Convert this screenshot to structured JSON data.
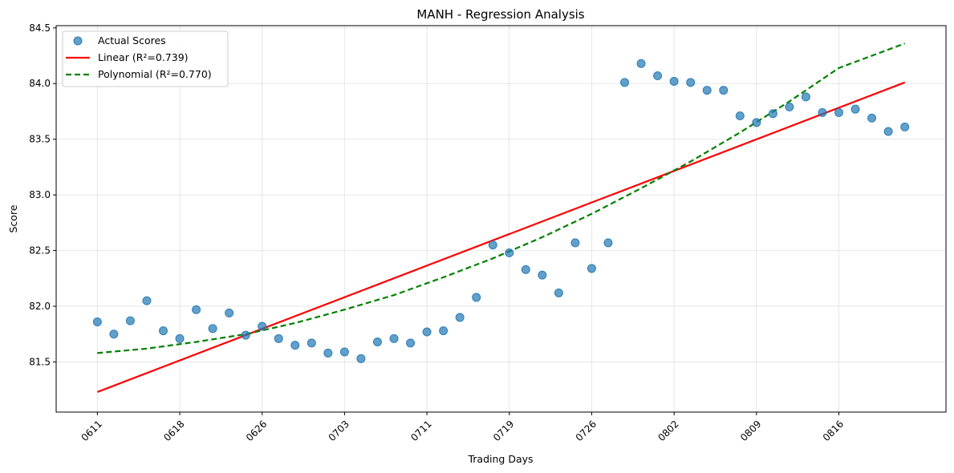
{
  "chart_data": {
    "type": "scatter",
    "title": "MANH - Regression Analysis",
    "xlabel": "Trading Days",
    "ylabel": "Score",
    "ylim": [
      81.05,
      84.52
    ],
    "yticks": [
      81.5,
      82.0,
      82.5,
      83.0,
      83.5,
      84.0,
      84.5
    ],
    "ytick_labels": [
      "81.5",
      "82.0",
      "82.5",
      "83.0",
      "83.5",
      "84.0",
      "84.5"
    ],
    "xticks": [
      0,
      5,
      10,
      15,
      20,
      25,
      30,
      35,
      40,
      45
    ],
    "xtick_labels": [
      "0611",
      "0618",
      "0626",
      "0703",
      "0711",
      "0719",
      "0726",
      "0802",
      "0809",
      "0816"
    ],
    "xlim": [
      -2.5,
      51.5
    ],
    "grid": true,
    "legend_position": "top-left",
    "series": [
      {
        "name": "Actual Scores",
        "kind": "scatter",
        "color": "#1f77b4",
        "x": [
          0,
          1,
          2,
          3,
          4,
          5,
          6,
          7,
          8,
          9,
          10,
          11,
          12,
          13,
          14,
          15,
          16,
          17,
          18,
          19,
          20,
          21,
          22,
          23,
          24,
          25,
          26,
          27,
          28,
          29,
          30,
          31,
          32,
          33,
          34,
          35,
          36,
          37,
          38,
          39,
          40,
          41,
          42,
          43,
          44,
          45,
          46,
          47,
          48,
          49
        ],
        "y": [
          81.86,
          81.75,
          81.87,
          82.05,
          81.78,
          81.71,
          81.97,
          81.8,
          81.94,
          81.74,
          81.82,
          81.71,
          81.65,
          81.67,
          81.58,
          81.59,
          81.53,
          81.68,
          81.71,
          81.67,
          81.77,
          81.78,
          81.9,
          82.08,
          82.55,
          82.48,
          82.33,
          82.28,
          82.12,
          82.57,
          82.34,
          82.57,
          84.01,
          84.18,
          84.07,
          84.02,
          84.01,
          83.94,
          83.94,
          83.71,
          83.65,
          83.73,
          83.79,
          83.88,
          83.74,
          83.74,
          83.77,
          83.69,
          83.57,
          83.61
        ]
      },
      {
        "name": "Linear (R²=0.739)",
        "kind": "line",
        "color": "#ff0000",
        "dash": "solid",
        "x": [
          0,
          49
        ],
        "y": [
          81.23,
          84.01
        ]
      },
      {
        "name": "Polynomial (R²=0.770)",
        "kind": "line",
        "color": "#008000",
        "dash": "dashed",
        "x": [
          0,
          3,
          6,
          9,
          12,
          15,
          18,
          21,
          24,
          27,
          30,
          33,
          36,
          39,
          42,
          45,
          49
        ],
        "y": [
          81.58,
          81.62,
          81.68,
          81.75,
          81.85,
          81.97,
          82.1,
          82.26,
          82.43,
          82.62,
          82.83,
          83.06,
          83.3,
          83.56,
          83.84,
          84.14,
          84.36
        ]
      }
    ]
  }
}
